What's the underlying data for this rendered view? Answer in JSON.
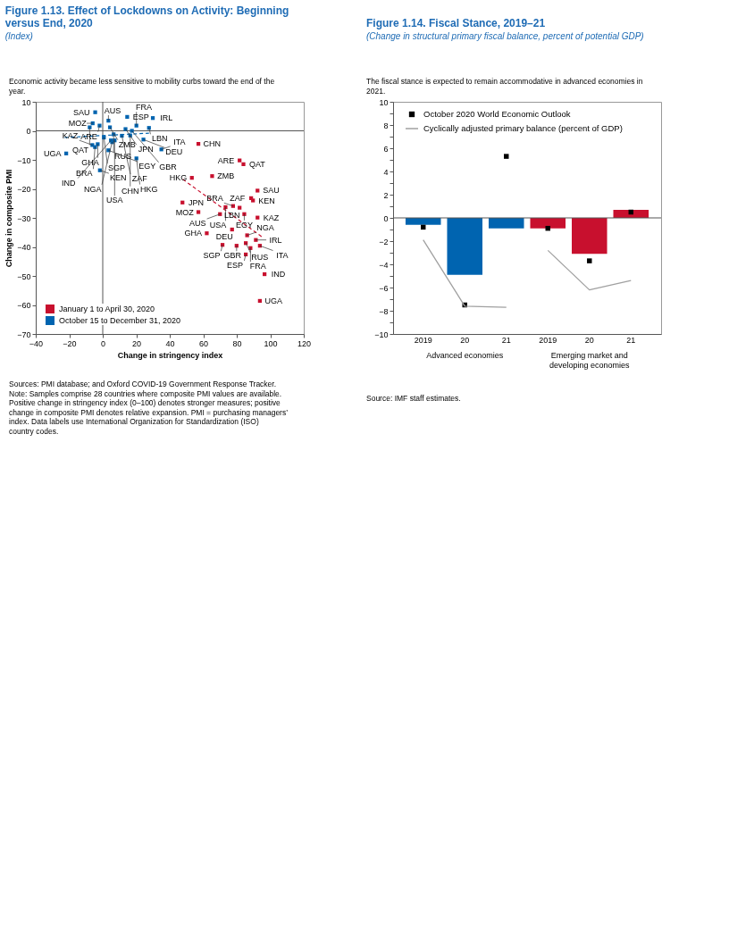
{
  "chart_data": [
    {
      "type": "scatter",
      "title": "Figure 1.13.  Effect of Lockdowns on Activity: Beginning versus End, 2020",
      "subtitle": "(Index)",
      "xlabel": "Change in stringency index",
      "ylabel": "Change in composite PMI",
      "xlim": [
        -40,
        120
      ],
      "xticks": [
        -40,
        -20,
        0,
        20,
        40,
        60,
        80,
        100,
        120
      ],
      "ylim": [
        -70,
        10
      ],
      "yticks": [
        -70,
        -60,
        -50,
        -40,
        -30,
        -20,
        -10,
        0,
        10
      ],
      "marker": "square",
      "legend": "bottom left",
      "grid": false,
      "ref_lines": [
        {
          "axis": "x",
          "value": 0,
          "color": "#555555"
        },
        {
          "axis": "y",
          "value": 0,
          "color": "#555555"
        }
      ],
      "series": [
        {
          "name": "January 1 to April 30, 2020",
          "type": "scatter",
          "color": "#c8102e",
          "x": [
            57.1,
            81.7,
            84,
            53.2,
            65.3,
            92.4,
            88.6,
            89.7,
            47.6,
            77.8,
            81.7,
            73.3,
            57.1,
            84.5,
            70,
            92.4,
            62.1,
            77.2,
            86.2,
            91.4,
            79.9,
            71.5,
            85.4,
            93.8,
            88.2,
            85.4,
            96.6,
            93.8
          ],
          "values": [
            -4.5,
            -10.2,
            -11.5,
            -16.2,
            -15.6,
            -20.6,
            -23.2,
            -24,
            -24.7,
            -25.9,
            -26.5,
            -26.3,
            -28,
            -28.7,
            -28.7,
            -29.9,
            -35.3,
            -34,
            -36,
            -37.6,
            -39.6,
            -39.3,
            -38.7,
            -39.6,
            -40.4,
            -42.6,
            -49.4,
            -58.6
          ]
        },
        {
          "name": "October 15 to December 31, 2020",
          "type": "scatter",
          "color": "#0064b0",
          "x": [
            -4.5,
            -1.9,
            3.4,
            4.3,
            6.5,
            14.6,
            20.1,
            29.9,
            27.6,
            13.6,
            -6,
            -7.8,
            0.7,
            -3.0,
            -4.6,
            -6.2,
            -21.8,
            -1.7,
            3.4,
            11.4,
            24.3,
            17.4,
            16.4,
            35,
            20.1,
            7.1,
            5.6,
            4.9
          ],
          "values": [
            6.4,
            1.8,
            3.5,
            1.2,
            -1.2,
            4.8,
            1.8,
            4.4,
            1,
            0.6,
            2.6,
            1.2,
            -2.3,
            -4.6,
            -5.6,
            -4.9,
            -7.8,
            -13.6,
            -6.7,
            -1.7,
            -3,
            0,
            -1.6,
            -6.4,
            -9.5,
            -3.3,
            -3.9,
            -3.3
          ]
        },
        {
          "type": "line",
          "color": "#c8102e",
          "line_style": "dashed",
          "marker": "none",
          "x": [
            47.8,
            95.7
          ],
          "values": [
            -16.7,
            -36.8
          ]
        },
        {
          "type": "line",
          "color": "#0064b0",
          "line_style": "dashed",
          "marker": "none",
          "x": [
            -22.8,
            27.6
          ],
          "values": [
            -2.3,
            -0.8
          ]
        }
      ],
      "annotations": [
        "Economic activity became less sensitive to mobility curbs toward the end of the year.",
        {
          "text": "CHN",
          "x": 57.1,
          "y": -4.5
        },
        {
          "text": "ARE",
          "x": 81.7,
          "y": -10.2
        },
        {
          "text": "QAT",
          "x": 84,
          "y": -11.5
        },
        {
          "text": "HKG",
          "x": 53.2,
          "y": -16.2
        },
        {
          "text": "ZMB",
          "x": 65.3,
          "y": -15.6
        },
        {
          "text": "SAU",
          "x": 92.4,
          "y": -20.6
        },
        {
          "text": "ZAF",
          "x": 88.6,
          "y": -23.2
        },
        {
          "text": "KEN",
          "x": 89.7,
          "y": -24
        },
        {
          "text": "JPN",
          "x": 47.6,
          "y": -24.7
        },
        {
          "text": "BRA",
          "x": 77.8,
          "y": -25.9
        },
        {
          "text": "LBN",
          "x": 81.7,
          "y": -26.5
        },
        {
          "text": "USA",
          "x": 73.3,
          "y": -26.3
        },
        {
          "text": "MOZ",
          "x": 57.1,
          "y": -28
        },
        {
          "text": "EGY",
          "x": 84.5,
          "y": -28.7
        },
        {
          "text": "AUS",
          "x": 70,
          "y": -28.7
        },
        {
          "text": "KAZ",
          "x": 92.4,
          "y": -29.9
        },
        {
          "text": "GHA",
          "x": 62.1,
          "y": -35.3
        },
        {
          "text": "DEU",
          "x": 77.2,
          "y": -34
        },
        {
          "text": "NGA",
          "x": 86.2,
          "y": -36
        },
        {
          "text": "IRL",
          "x": 91.4,
          "y": -37.6
        },
        {
          "text": "GBR",
          "x": 79.9,
          "y": -39.6
        },
        {
          "text": "SGP",
          "x": 71.5,
          "y": -39.3
        },
        {
          "text": "RUS",
          "x": 85.4,
          "y": -38.7
        },
        {
          "text": "ITA",
          "x": 93.8,
          "y": -39.6
        },
        {
          "text": "FRA",
          "x": 88.2,
          "y": -40.4
        },
        {
          "text": "ESP",
          "x": 85.4,
          "y": -42.6
        },
        {
          "text": "IND",
          "x": 96.6,
          "y": -49.4
        },
        {
          "text": "UGA",
          "x": 93.8,
          "y": -58.6
        },
        {
          "text": "SAU",
          "x": -4.5,
          "y": 6.4
        },
        {
          "text": "ARE",
          "x": -1.9,
          "y": 1.8
        },
        {
          "text": "AUS",
          "x": 3.4,
          "y": 3.5
        },
        {
          "text": "ZMB",
          "x": 4.3,
          "y": 1.2
        },
        {
          "text": "RUS",
          "x": 6.5,
          "y": -1.2
        },
        {
          "text": "ESP",
          "x": 14.6,
          "y": 4.8
        },
        {
          "text": "FRA",
          "x": 20.1,
          "y": 1.8
        },
        {
          "text": "IRL",
          "x": 29.9,
          "y": 4.4
        },
        {
          "text": "LBN",
          "x": 27.6,
          "y": 1
        },
        {
          "text": "JPN",
          "x": 13.6,
          "y": 0.6
        },
        {
          "text": "MOZ",
          "x": -6,
          "y": 2.6
        },
        {
          "text": "QAT",
          "x": -7.8,
          "y": 1.2
        },
        {
          "text": "SGP",
          "x": 0.7,
          "y": -2.3
        },
        {
          "text": "GHA",
          "x": -3.0,
          "y": -4.6
        },
        {
          "text": "BRA",
          "x": -4.6,
          "y": -5.6
        },
        {
          "text": "KAZ",
          "x": -6.2,
          "y": -4.9
        },
        {
          "text": "UGA",
          "x": -21.8,
          "y": -7.8
        },
        {
          "text": "KEN",
          "x": -1.7,
          "y": -13.6
        },
        {
          "text": "EGY",
          "x": 3.4,
          "y": -6.7
        },
        {
          "text": "ZAF",
          "x": 11.4,
          "y": -1.7
        },
        {
          "text": "DEU",
          "x": 24.3,
          "y": -3
        },
        {
          "text": "GBR",
          "x": 17.4,
          "y": 0
        },
        {
          "text": "CHN",
          "x": 16.4,
          "y": -1.6
        },
        {
          "text": "ITA",
          "x": 35,
          "y": -6.4
        },
        {
          "text": "HKG",
          "x": 20.1,
          "y": -9.5
        },
        {
          "text": "USA",
          "x": 7.1,
          "y": -3.3
        },
        {
          "text": "NGA",
          "x": 5.6,
          "y": -3.9
        },
        {
          "text": "IND",
          "x": 4.9,
          "y": -3.3
        },
        "Sources: PMI database; and Oxford COVID-19 Government Response Tracker.",
        "Note: Samples comprise 28 countries where composite PMI values are available. Positive change in stringency index (0–100) denotes stronger measures; positive change in composite PMI denotes relative expansion. PMI = purchasing managers’ index. Data labels use International Organization for Standardization (ISO) country codes."
      ]
    },
    {
      "type": "bar",
      "title": "Figure 1.14.  Fiscal Stance, 2019–21",
      "subtitle": "(Change in structural primary fiscal balance, percent of potential GDP)",
      "categories": [
        "2019",
        "20",
        "21",
        "2019",
        "20",
        "21"
      ],
      "ylim": [
        -10,
        10
      ],
      "yticks": [
        -10,
        {
          "value": -9,
          "label": null
        },
        -8,
        {
          "value": -7,
          "label": null
        },
        -6,
        {
          "value": -5,
          "label": null
        },
        -4,
        {
          "value": -3,
          "label": null
        },
        -2,
        {
          "value": -1,
          "label": null
        },
        0,
        {
          "value": 1,
          "label": null
        },
        2,
        {
          "value": 3,
          "label": null
        },
        4,
        {
          "value": 5,
          "label": null
        },
        6,
        {
          "value": 7,
          "label": null
        },
        8,
        {
          "value": 9,
          "label": null
        },
        10
      ],
      "legend": "top left",
      "grid": false,
      "ref_lines": [
        {
          "axis": "y",
          "value": 0,
          "color": "#555555"
        }
      ],
      "series": [
        {
          "type": "bar",
          "colors": [
            "#0064b0",
            "#0064b0",
            "#0064b0",
            "#c8102e",
            "#c8102e",
            "#c8102e"
          ],
          "values": [
            -0.6,
            -4.9,
            -0.9,
            -0.9,
            -3.1,
            0.7
          ]
        },
        {
          "name": "October 2020 World Economic Outlook",
          "type": "scatter",
          "marker": "square",
          "color": "#000000",
          "values": [
            -0.8,
            -7.5,
            5.3,
            -0.9,
            -3.7,
            0.5
          ]
        },
        {
          "name": "Cyclically adjusted primary balance (percent of GDP)",
          "type": "line",
          "line_style": "solid",
          "marker": "none",
          "color": "#a0a0a0",
          "values": [
            -1.9,
            -7.6,
            -7.7,
            null,
            null,
            null
          ]
        },
        {
          "type": "line",
          "line_style": "solid",
          "marker": "none",
          "color": "#a0a0a0",
          "values": [
            null,
            null,
            null,
            -2.8,
            -6.2,
            -5.4
          ]
        }
      ],
      "annotations": [
        "The fiscal stance is expected to remain accommodative in advanced economies in 2021.",
        "Advanced economies",
        "Emerging market and developing economies",
        "Source: IMF staff estimates."
      ]
    }
  ]
}
